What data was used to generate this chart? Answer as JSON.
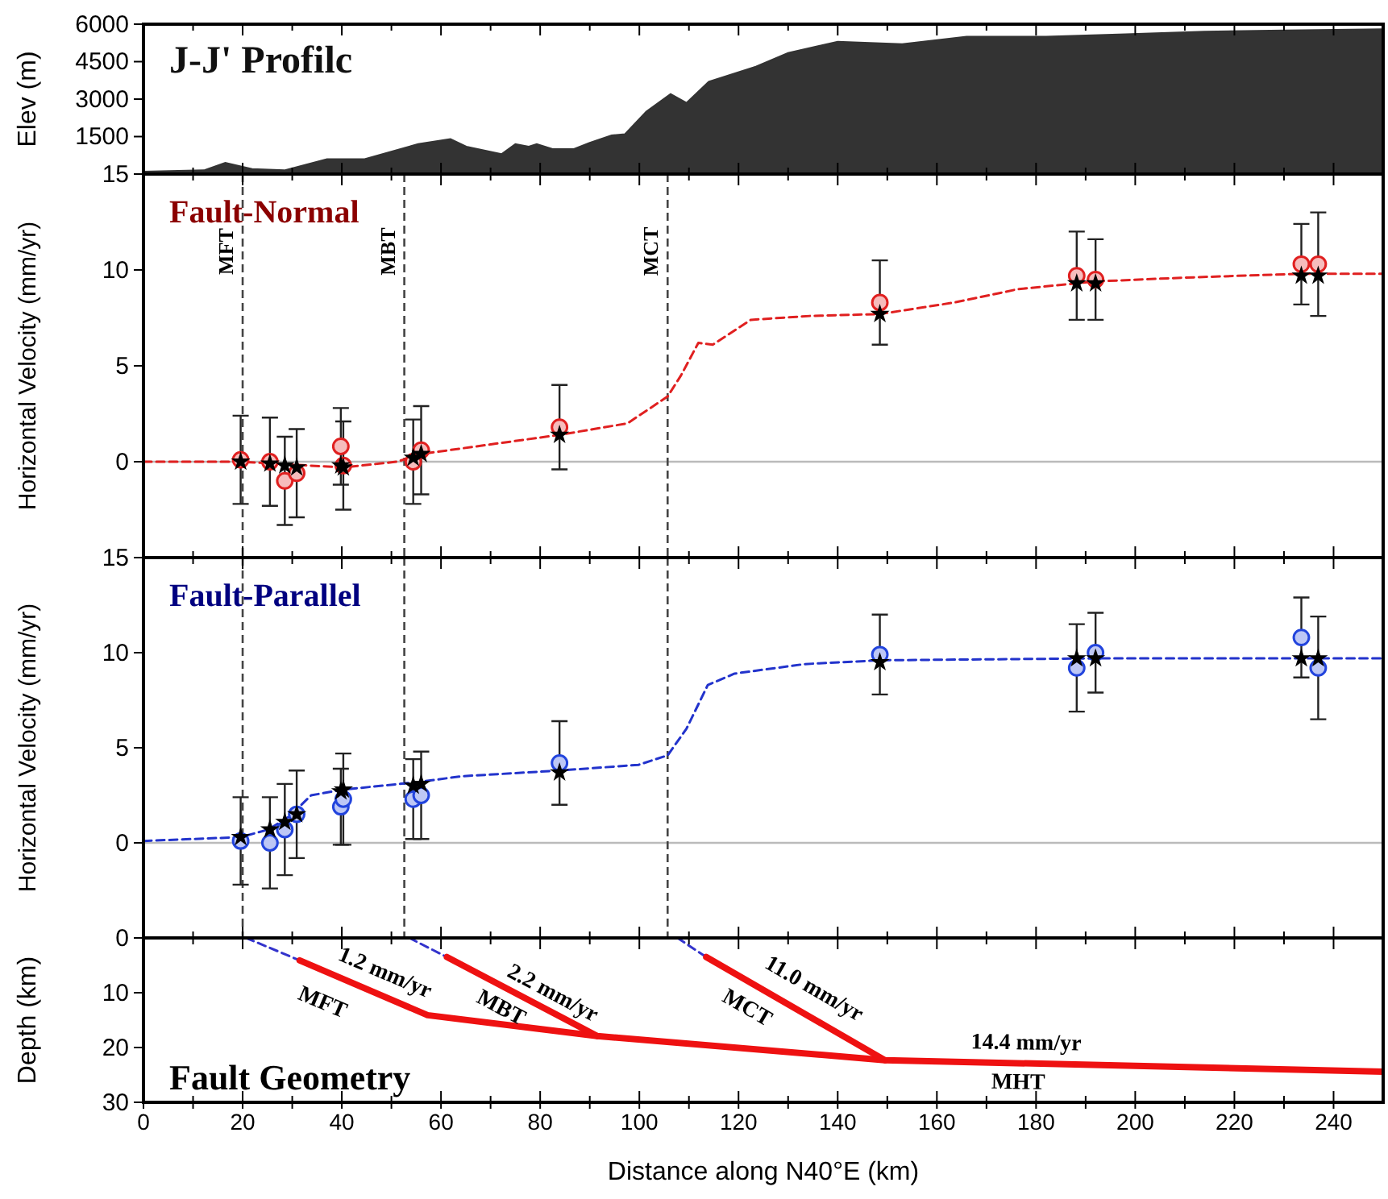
{
  "chart_data": [
    {
      "type": "area",
      "title": "J-J' Profilc",
      "ylabel": "Elev (m)",
      "xlim": [
        0,
        250
      ],
      "ylim": [
        0,
        6000
      ],
      "yticks": [
        1500,
        3000,
        4500,
        6000
      ],
      "xticks": [
        0,
        {
          "value": 10,
          "label": null
        },
        20,
        {
          "value": 30,
          "label": null
        },
        40,
        {
          "value": 50,
          "label": null
        },
        60,
        {
          "value": 70,
          "label": null
        },
        80,
        {
          "value": 90,
          "label": null
        },
        100,
        {
          "value": 110,
          "label": null
        },
        120,
        {
          "value": 130,
          "label": null
        },
        140,
        {
          "value": 150,
          "label": null
        },
        160,
        {
          "value": 170,
          "label": null
        },
        180,
        {
          "value": 190,
          "label": null
        },
        200,
        {
          "value": 210,
          "label": null
        },
        220,
        {
          "value": 230,
          "label": null
        },
        240
      ],
      "tick_labels": "y",
      "series": [
        {
          "color": "#333333",
          "x": [
            0,
            12.2,
            16.5,
            21.9,
            28.4,
            37,
            44.6,
            55.4,
            61.9,
            65.1,
            72.2,
            75,
            77.7,
            79.3,
            82.5,
            86.8,
            90,
            94.4,
            97.1,
            101.4,
            106.3,
            109.5,
            114,
            123.5,
            130,
            140,
            153,
            166,
            182,
            198,
            214,
            230,
            250
          ],
          "values": [
            100,
            150,
            450,
            200,
            150,
            600,
            600,
            1200,
            1400,
            1100,
            800,
            1200,
            1100,
            1200,
            1000,
            1000,
            1250,
            1550,
            1600,
            2500,
            3200,
            2850,
            3700,
            4300,
            4850,
            5300,
            5200,
            5500,
            5500,
            5600,
            5700,
            5750,
            5800
          ]
        }
      ]
    },
    {
      "type": "scatter",
      "title": "Fault-Normal",
      "ylabel": "Horizontal Velocity (mm/yr)",
      "xlim": [
        0,
        250
      ],
      "ylim": [
        -5,
        15
      ],
      "yticks": [
        0,
        5,
        10,
        15
      ],
      "xticks": [
        0,
        {
          "value": 10,
          "label": null
        },
        20,
        {
          "value": 30,
          "label": null
        },
        40,
        {
          "value": 50,
          "label": null
        },
        60,
        {
          "value": 70,
          "label": null
        },
        80,
        {
          "value": 90,
          "label": null
        },
        100,
        {
          "value": 110,
          "label": null
        },
        120,
        {
          "value": 130,
          "label": null
        },
        140,
        {
          "value": 150,
          "label": null
        },
        160,
        {
          "value": 170,
          "label": null
        },
        180,
        {
          "value": 190,
          "label": null
        },
        200,
        {
          "value": 210,
          "label": null
        },
        220,
        {
          "value": 230,
          "label": null
        },
        240
      ],
      "tick_labels": "y",
      "ref_lines": [
        {
          "axis": "y",
          "value": 0,
          "color": "#bbbbbb",
          "line_style": "solid"
        },
        {
          "axis": "x",
          "value": 20,
          "label": "MFT",
          "color": "#444444",
          "line_style": "dashed"
        },
        {
          "axis": "x",
          "value": 52.6,
          "label": "MBT",
          "color": "#444444",
          "line_style": "dashed"
        },
        {
          "axis": "x",
          "value": 105.7,
          "label": "MCT",
          "color": "#444444",
          "line_style": "dashed"
        }
      ],
      "series": [
        {
          "type": "line",
          "color": "#e02020",
          "line_style": "dashed",
          "x": [
            0,
            19.6,
            40.3,
            51.1,
            56,
            72.7,
            83.9,
            97.6,
            105.7,
            108.4,
            111.9,
            114.8,
            122.5,
            134.4,
            148.5,
            163.5,
            176.4,
            192,
            210,
            233.5,
            250
          ],
          "values": [
            0,
            0,
            -0.3,
            0,
            0.4,
            1.0,
            1.4,
            2.0,
            3.4,
            4.5,
            6.2,
            6.1,
            7.4,
            7.6,
            7.7,
            8.3,
            9.0,
            9.4,
            9.6,
            9.8,
            9.8
          ]
        },
        {
          "color": "#e02020",
          "marker": "circle",
          "x": [
            19.6,
            25.5,
            28.5,
            30.9,
            39.8,
            40.3,
            54.4,
            56.0,
            83.9,
            148.5,
            188.2,
            192.0,
            233.5,
            236.9
          ],
          "values": [
            0.1,
            0.0,
            -1.0,
            -0.6,
            0.8,
            -0.2,
            0.0,
            0.6,
            1.8,
            8.3,
            9.7,
            9.5,
            10.3,
            10.3
          ],
          "errors": [
            2.3,
            2.3,
            2.3,
            2.3,
            2.0,
            2.3,
            2.2,
            2.3,
            2.2,
            2.2,
            2.3,
            2.1,
            2.1,
            2.7
          ]
        },
        {
          "color": "#000000",
          "marker": "star",
          "x": [
            19.6,
            25.5,
            28.5,
            30.9,
            39.8,
            40.3,
            54.4,
            56.0,
            83.9,
            148.5,
            188.2,
            192.0,
            233.5,
            236.9
          ],
          "values": [
            0,
            -0.1,
            -0.2,
            -0.3,
            -0.2,
            -0.3,
            0.2,
            0.4,
            1.4,
            7.7,
            9.3,
            9.3,
            9.7,
            9.7
          ]
        }
      ]
    },
    {
      "type": "scatter",
      "title": "Fault-Parallel",
      "ylabel": "Horizontal Velocity (mm/yr)",
      "xlim": [
        0,
        250
      ],
      "ylim": [
        -5,
        15
      ],
      "yticks": [
        0,
        5,
        10,
        15
      ],
      "xticks": [
        0,
        {
          "value": 10,
          "label": null
        },
        20,
        {
          "value": 30,
          "label": null
        },
        40,
        {
          "value": 50,
          "label": null
        },
        60,
        {
          "value": 70,
          "label": null
        },
        80,
        {
          "value": 90,
          "label": null
        },
        100,
        {
          "value": 110,
          "label": null
        },
        120,
        {
          "value": 130,
          "label": null
        },
        140,
        {
          "value": 150,
          "label": null
        },
        160,
        {
          "value": 170,
          "label": null
        },
        180,
        {
          "value": 190,
          "label": null
        },
        200,
        {
          "value": 210,
          "label": null
        },
        220,
        {
          "value": 230,
          "label": null
        },
        240
      ],
      "tick_labels": "y",
      "ref_lines": [
        {
          "axis": "y",
          "value": 0,
          "color": "#bbbbbb",
          "line_style": "solid"
        },
        {
          "axis": "x",
          "value": 20,
          "color": "#444444",
          "line_style": "dashed"
        },
        {
          "axis": "x",
          "value": 52.6,
          "color": "#444444",
          "line_style": "dashed"
        },
        {
          "axis": "x",
          "value": 105.7,
          "color": "#444444",
          "line_style": "dashed"
        }
      ],
      "series": [
        {
          "type": "line",
          "color": "#2233cc",
          "line_style": "dashed",
          "x": [
            0,
            19.6,
            25.2,
            29.5,
            33.8,
            40.3,
            55.5,
            64.1,
            83.6,
            99.8,
            105.7,
            109.5,
            113.8,
            119.2,
            133.3,
            148.5,
            192,
            250
          ],
          "values": [
            0.1,
            0.3,
            0.7,
            1.4,
            2.5,
            2.8,
            3.2,
            3.5,
            3.8,
            4.1,
            4.6,
            6.0,
            8.3,
            8.9,
            9.4,
            9.6,
            9.7,
            9.7
          ]
        },
        {
          "color": "#2244dd",
          "marker": "circle",
          "x": [
            19.6,
            25.5,
            28.5,
            30.9,
            39.8,
            40.3,
            54.4,
            56.0,
            83.9,
            148.5,
            188.2,
            192.0,
            233.5,
            236.9
          ],
          "values": [
            0.1,
            0.0,
            0.7,
            1.5,
            1.9,
            2.3,
            2.3,
            2.5,
            4.2,
            9.9,
            9.2,
            10.0,
            10.8,
            9.2
          ],
          "errors": [
            2.3,
            2.4,
            2.4,
            2.3,
            2.0,
            2.4,
            2.1,
            2.3,
            2.2,
            2.1,
            2.3,
            2.1,
            2.1,
            2.7
          ]
        },
        {
          "color": "#000000",
          "marker": "star",
          "x": [
            19.6,
            25.5,
            28.5,
            30.9,
            39.8,
            40.3,
            54.4,
            56.0,
            83.9,
            148.5,
            188.2,
            192.0,
            233.5,
            236.9
          ],
          "values": [
            0.3,
            0.7,
            1.1,
            1.5,
            2.7,
            2.8,
            3.0,
            3.1,
            3.7,
            9.5,
            9.7,
            9.7,
            9.7,
            9.7
          ]
        }
      ]
    },
    {
      "type": "line",
      "title": "Fault Geometry",
      "xlabel": "Distance along N40°E (km)",
      "ylabel": "Depth (km)",
      "xlim": [
        0,
        250
      ],
      "ylim": [
        30,
        0
      ],
      "yticks": [
        0,
        10,
        20,
        30
      ],
      "xticks": [
        0,
        {
          "value": 10,
          "label": null
        },
        20,
        {
          "value": 30,
          "label": null
        },
        40,
        {
          "value": 50,
          "label": null
        },
        60,
        {
          "value": 70,
          "label": null
        },
        80,
        {
          "value": 90,
          "label": null
        },
        100,
        {
          "value": 110,
          "label": null
        },
        120,
        {
          "value": 130,
          "label": null
        },
        140,
        {
          "value": 150,
          "label": null
        },
        160,
        {
          "value": 170,
          "label": null
        },
        180,
        {
          "value": 190,
          "label": null
        },
        200,
        {
          "value": 210,
          "label": null
        },
        220,
        {
          "value": 230,
          "label": null
        },
        240
      ],
      "annotations": [
        "1.2 mm/yr",
        "MFT",
        "2.2 mm/yr",
        "MBT",
        "11.0 mm/yr",
        "MCT",
        "14.4 mm/yr",
        "MHT"
      ],
      "series": [
        {
          "color": "#3333cc",
          "line_style": "dashed",
          "x": [
            20.7,
            31.5
          ],
          "values": [
            0,
            4.1
          ]
        },
        {
          "color": "#3333cc",
          "line_style": "dashed",
          "x": [
            53.6,
            61.2
          ],
          "values": [
            0,
            3.5
          ]
        },
        {
          "color": "#3333cc",
          "line_style": "dashed",
          "x": [
            107.7,
            113.5
          ],
          "values": [
            0,
            3.5
          ]
        },
        {
          "color": "#ee1111",
          "line_style": "solid",
          "x": [
            31.5,
            57.3,
            91.5,
            149.5,
            250
          ],
          "values": [
            4.1,
            14.1,
            17.9,
            22.3,
            24.4
          ]
        },
        {
          "color": "#ee1111",
          "line_style": "solid",
          "x": [
            61.2,
            91.5
          ],
          "values": [
            3.5,
            17.9
          ]
        },
        {
          "color": "#ee1111",
          "line_style": "solid",
          "x": [
            113.5,
            149.5
          ],
          "values": [
            3.5,
            22.3
          ]
        }
      ]
    }
  ]
}
